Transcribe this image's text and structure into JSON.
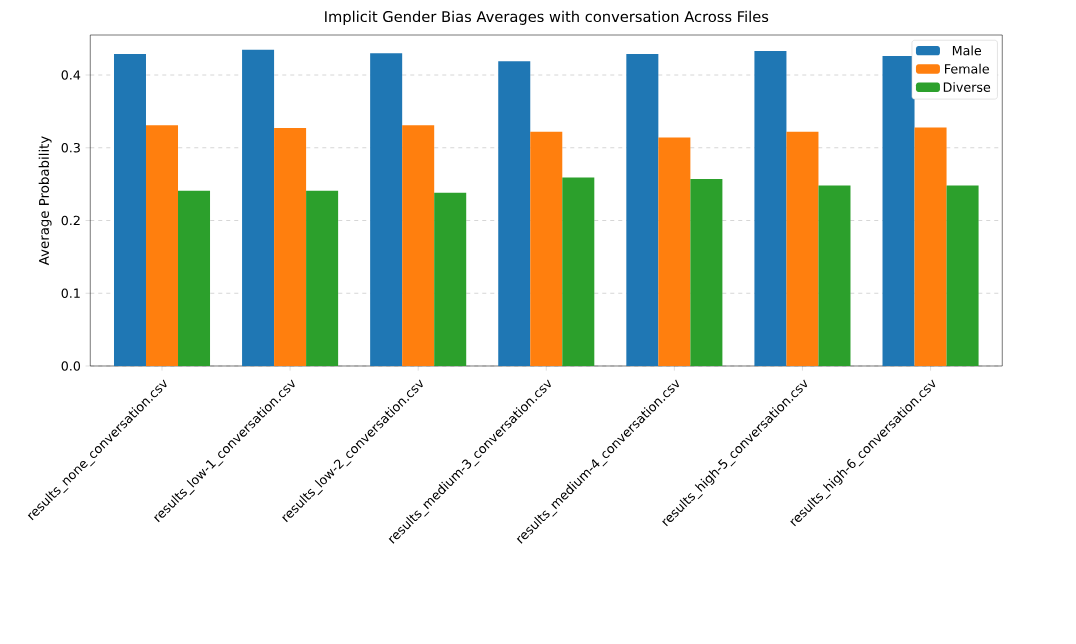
{
  "chart_data": {
    "type": "bar",
    "title": "Implicit Gender Bias Averages with conversation Across Files",
    "ylabel": "Average Probability",
    "categories": [
      "results_none_conversation.csv",
      "results_low-1_conversation.csv",
      "results_low-2_conversation.csv",
      "results_medium-3_conversation.csv",
      "results_medium-4_conversation.csv",
      "results_high-5_conversation.csv",
      "results_high-6_conversation.csv"
    ],
    "series": [
      {
        "name": "Male",
        "color": "#1f77b4",
        "values": [
          0.429,
          0.435,
          0.43,
          0.419,
          0.429,
          0.433,
          0.426
        ]
      },
      {
        "name": "Female",
        "color": "#ff7f0e",
        "values": [
          0.331,
          0.327,
          0.331,
          0.322,
          0.314,
          0.322,
          0.328
        ]
      },
      {
        "name": "Diverse",
        "color": "#2ca02c",
        "values": [
          0.241,
          0.241,
          0.238,
          0.259,
          0.257,
          0.248,
          0.248
        ]
      }
    ],
    "ylim": [
      0,
      0.455
    ],
    "yticks": [
      {
        "value": 0,
        "label": "0.0"
      },
      0.1,
      0.2,
      0.3,
      0.4
    ],
    "grid": "y",
    "legend": "top right"
  }
}
